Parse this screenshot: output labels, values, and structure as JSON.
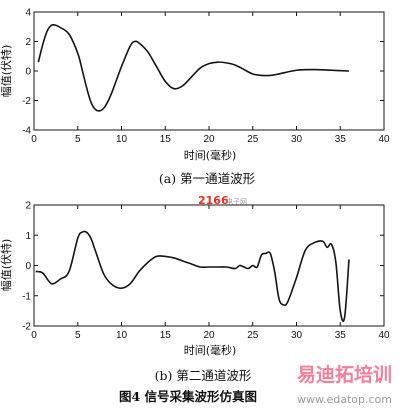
{
  "chart_data": [
    {
      "type": "line",
      "xlabel": "时间(毫秒)",
      "ylabel": "幅值(伏特)",
      "xlim": [
        0,
        40
      ],
      "ylim": [
        -4,
        4
      ],
      "xticks": [
        0,
        5,
        10,
        15,
        20,
        25,
        30,
        35,
        40
      ],
      "yticks": [
        -4,
        -2,
        0,
        2,
        4
      ],
      "caption": "(a)  第一通道波形",
      "x": [
        0.5,
        1,
        1.5,
        2,
        2.5,
        3,
        4,
        5,
        5.5,
        6,
        6.5,
        7,
        7.5,
        8,
        8.5,
        9,
        10,
        11,
        11.5,
        12,
        13,
        14,
        15,
        16,
        17,
        18,
        19,
        20,
        21,
        22,
        23,
        24,
        25,
        26,
        27,
        28,
        30,
        32,
        34,
        36
      ],
      "values": [
        0.6,
        1.8,
        2.7,
        3.1,
        3.1,
        2.95,
        2.5,
        1.2,
        0.1,
        -1.1,
        -2.1,
        -2.6,
        -2.7,
        -2.5,
        -2.0,
        -1.3,
        0.3,
        1.7,
        2.0,
        1.9,
        1.3,
        0.3,
        -0.7,
        -1.2,
        -1.0,
        -0.4,
        0.2,
        0.5,
        0.6,
        0.55,
        0.4,
        0.1,
        -0.2,
        -0.3,
        -0.3,
        -0.2,
        0.05,
        0.1,
        0.05,
        0.0
      ]
    },
    {
      "type": "line",
      "xlabel": "时间(毫秒)",
      "ylabel": "幅值(伏特)",
      "xlim": [
        0,
        40
      ],
      "ylim": [
        -2,
        2
      ],
      "xticks": [
        0,
        5,
        10,
        15,
        20,
        25,
        30,
        35,
        40
      ],
      "yticks": [
        -2,
        -1,
        0,
        1,
        2
      ],
      "caption": "(b)  第二通道波形",
      "x": [
        0.2,
        1,
        2,
        3,
        4,
        5,
        5.5,
        6,
        6.5,
        7,
        8,
        9,
        10,
        11,
        12,
        13,
        14,
        15,
        16,
        17,
        18,
        19,
        20,
        21,
        22,
        23,
        23.5,
        24,
        24.5,
        25,
        25.5,
        26,
        26.5,
        27,
        27.5,
        28,
        28.5,
        29,
        30,
        31,
        32,
        33,
        33.5,
        34,
        34.5,
        35,
        35.5,
        36
      ],
      "values": [
        -0.2,
        -0.25,
        -0.6,
        -0.45,
        -0.2,
        0.9,
        1.1,
        1.1,
        0.9,
        0.5,
        -0.3,
        -0.65,
        -0.75,
        -0.6,
        -0.2,
        0.1,
        0.3,
        0.3,
        0.25,
        0.15,
        0.05,
        -0.05,
        -0.05,
        -0.05,
        -0.05,
        -0.1,
        0.0,
        -0.05,
        -0.1,
        0.0,
        -0.05,
        0.35,
        0.4,
        0.4,
        -0.2,
        -1.1,
        -1.3,
        -1.2,
        -0.4,
        0.5,
        0.75,
        0.8,
        0.6,
        0.7,
        0.1,
        -1.5,
        -1.7,
        0.2
      ]
    }
  ],
  "figure": {
    "caption": "图4   信号采集波形仿真图"
  },
  "watermarks": {
    "center": "2166",
    "center_suffix": "电子网",
    "brand": "易迪拓培训",
    "url": "www.edatop.com"
  },
  "colors": {
    "line": "#141414",
    "axis": "#141414",
    "background": "#ffffff",
    "watermark_red": "#e0301e",
    "brand_pink": "#f06a8a"
  }
}
